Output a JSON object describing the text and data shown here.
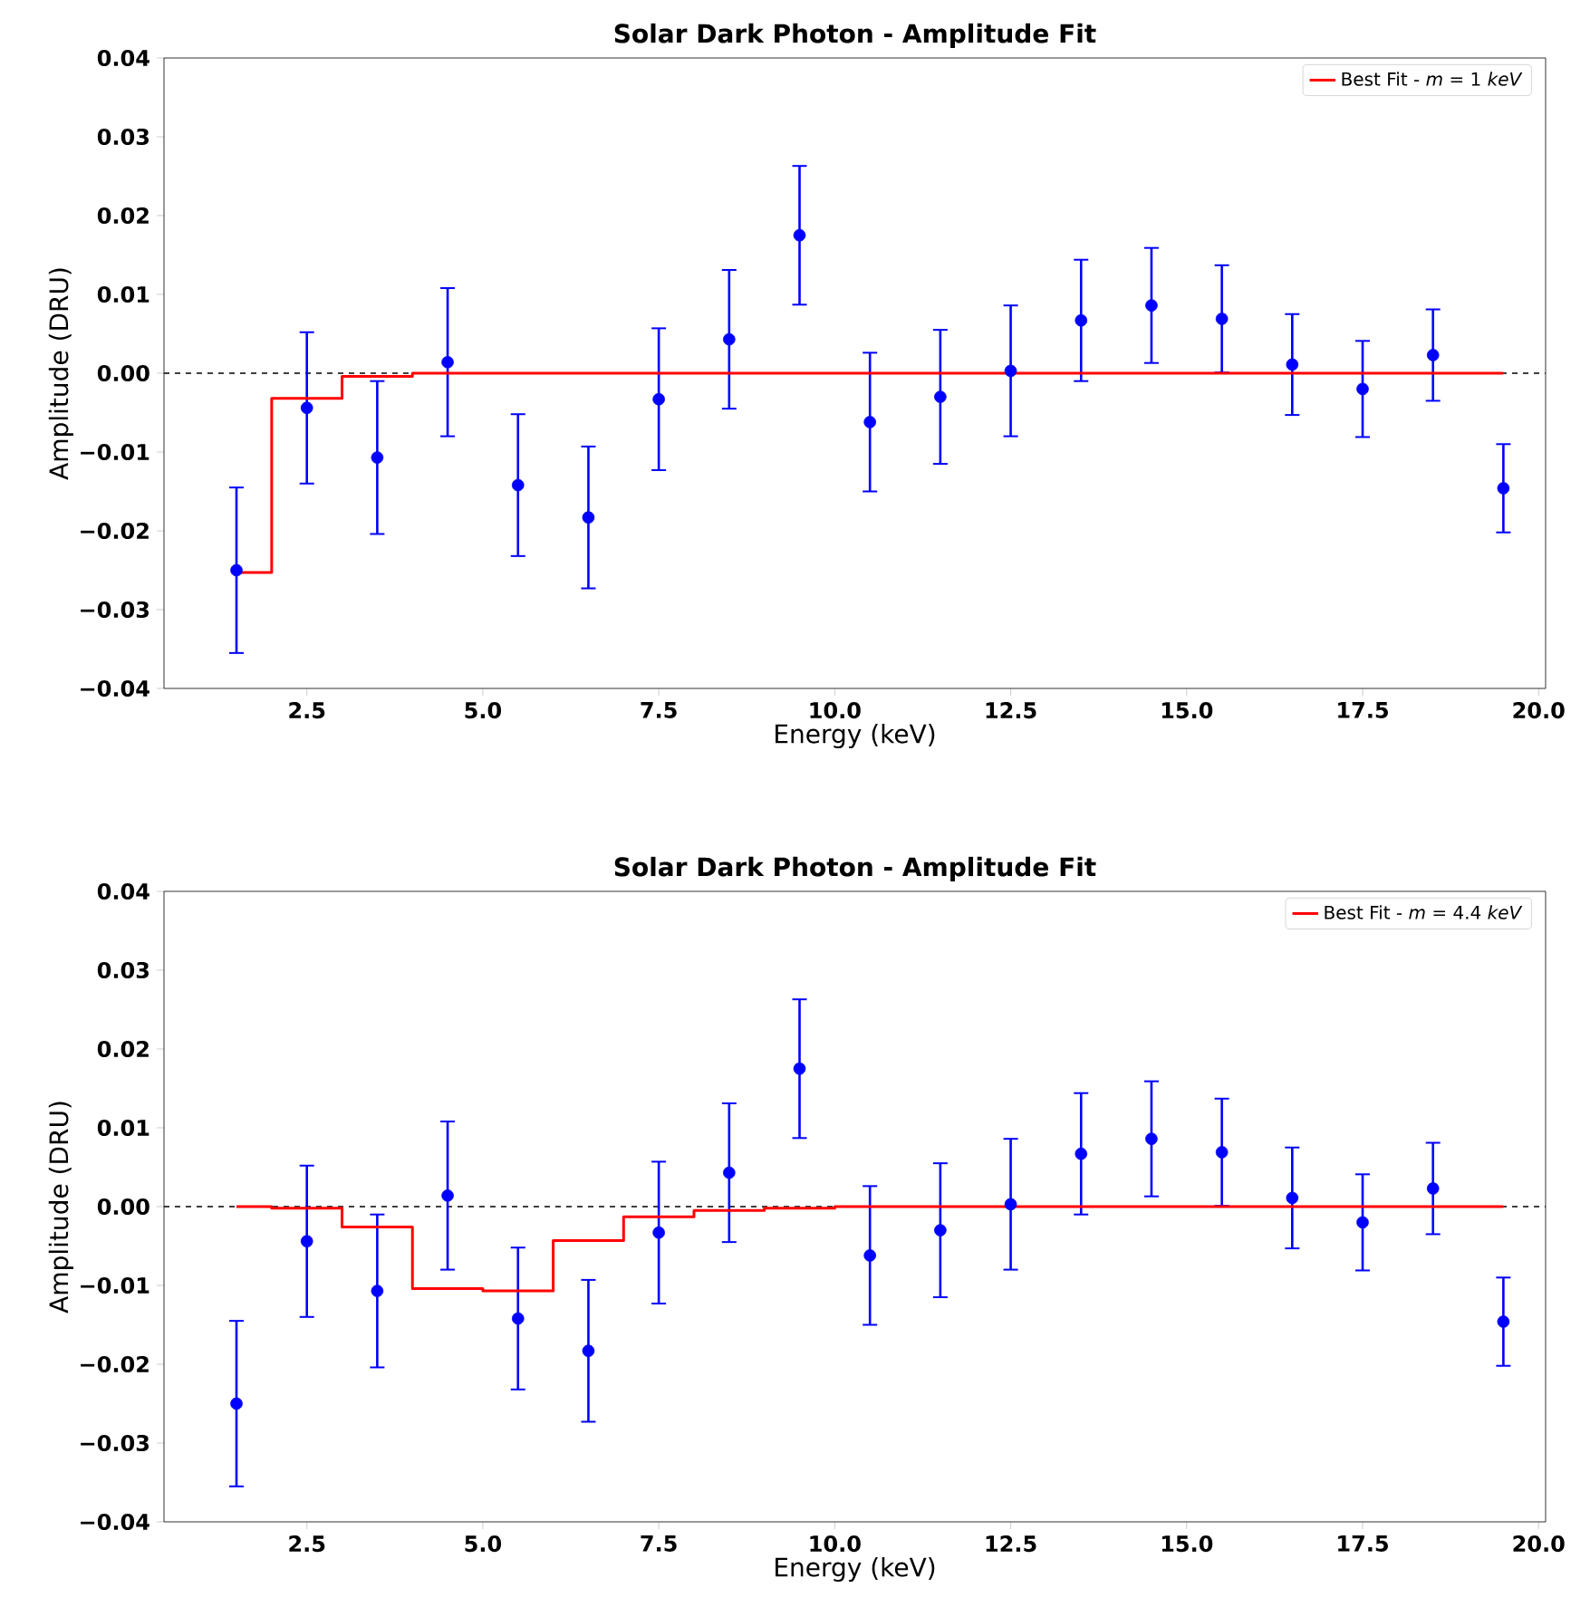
{
  "chart_data": [
    {
      "type": "scatter",
      "title": "Solar Dark Photon - Amplitude Fit",
      "xlabel": "Energy (keV)",
      "ylabel": "Amplitude (DRU)",
      "xlim": [
        0.47,
        20.1
      ],
      "ylim": [
        -0.04,
        0.04
      ],
      "xticks": [
        {
          "value": 2.5,
          "label": "2.5"
        },
        {
          "value": 5,
          "label": "5.0"
        },
        {
          "value": 7.5,
          "label": "7.5"
        },
        {
          "value": 10,
          "label": "10.0"
        },
        {
          "value": 12.5,
          "label": "12.5"
        },
        {
          "value": 15,
          "label": "15.0"
        },
        {
          "value": 17.5,
          "label": "17.5"
        },
        {
          "value": 20,
          "label": "20.0"
        }
      ],
      "yticks": [
        {
          "value": -0.04,
          "label": "−0.04"
        },
        {
          "value": -0.03,
          "label": "−0.03"
        },
        {
          "value": -0.02,
          "label": "−0.02"
        },
        {
          "value": -0.01,
          "label": "−0.01"
        },
        {
          "value": 0,
          "label": "0.00"
        },
        {
          "value": 0.01,
          "label": "0.01"
        },
        {
          "value": 0.02,
          "label": "0.02"
        },
        {
          "value": 0.03,
          "label": "0.03"
        },
        {
          "value": 0.04,
          "label": "0.04"
        }
      ],
      "legend": "top right",
      "grid": false,
      "ref_lines": [
        {
          "axis": "y",
          "value": 0,
          "color": "#000000",
          "line_style": "dashed"
        }
      ],
      "series": [
        {
          "color": "#0000ff",
          "marker": "circle",
          "x": [
            1.5,
            2.5,
            3.5,
            4.5,
            5.5,
            6.5,
            7.5,
            8.5,
            9.5,
            10.5,
            11.5,
            12.5,
            13.5,
            14.5,
            15.5,
            16.5,
            17.5,
            18.5,
            19.5
          ],
          "values": [
            -0.025,
            -0.0044,
            -0.0107,
            0.0014,
            -0.0142,
            -0.0183,
            -0.0033,
            0.0043,
            0.0175,
            -0.0062,
            -0.003,
            0.0003,
            0.0067,
            0.0086,
            0.0069,
            0.0011,
            -0.002,
            0.0023,
            -0.0146
          ],
          "errors": [
            0.0105,
            0.0096,
            0.0097,
            0.0094,
            0.009,
            0.009,
            0.009,
            0.0088,
            0.0088,
            0.0088,
            0.0085,
            0.0083,
            0.0077,
            0.0073,
            0.0068,
            0.0064,
            0.0061,
            0.0058,
            0.0056
          ]
        },
        {
          "type": "step",
          "name": "Best Fit - *m* = 1 *keV*",
          "color": "#ff0000",
          "x": [
            1.5,
            2.5,
            3.5,
            4.5,
            5.5,
            6.5,
            7.5,
            8.5,
            9.5,
            10.5,
            11.5,
            12.5,
            13.5,
            14.5,
            15.5,
            16.5,
            17.5,
            18.5,
            19.5
          ],
          "values": [
            -0.0253,
            -0.0032,
            -0.0004,
            0,
            0,
            0,
            0,
            0,
            0,
            0,
            0,
            0,
            0,
            0,
            0,
            0,
            0,
            0,
            0
          ]
        }
      ]
    },
    {
      "type": "scatter",
      "title": "Solar Dark Photon - Amplitude Fit",
      "xlabel": "Energy (keV)",
      "ylabel": "Amplitude (DRU)",
      "xlim": [
        0.47,
        20.1
      ],
      "ylim": [
        -0.04,
        0.04
      ],
      "xticks": [
        {
          "value": 2.5,
          "label": "2.5"
        },
        {
          "value": 5,
          "label": "5.0"
        },
        {
          "value": 7.5,
          "label": "7.5"
        },
        {
          "value": 10,
          "label": "10.0"
        },
        {
          "value": 12.5,
          "label": "12.5"
        },
        {
          "value": 15,
          "label": "15.0"
        },
        {
          "value": 17.5,
          "label": "17.5"
        },
        {
          "value": 20,
          "label": "20.0"
        }
      ],
      "yticks": [
        {
          "value": -0.04,
          "label": "−0.04"
        },
        {
          "value": -0.03,
          "label": "−0.03"
        },
        {
          "value": -0.02,
          "label": "−0.02"
        },
        {
          "value": -0.01,
          "label": "−0.01"
        },
        {
          "value": 0,
          "label": "0.00"
        },
        {
          "value": 0.01,
          "label": "0.01"
        },
        {
          "value": 0.02,
          "label": "0.02"
        },
        {
          "value": 0.03,
          "label": "0.03"
        },
        {
          "value": 0.04,
          "label": "0.04"
        }
      ],
      "legend": "top right",
      "grid": false,
      "ref_lines": [
        {
          "axis": "y",
          "value": 0,
          "color": "#000000",
          "line_style": "dashed"
        }
      ],
      "series": [
        {
          "color": "#0000ff",
          "marker": "circle",
          "x": [
            1.5,
            2.5,
            3.5,
            4.5,
            5.5,
            6.5,
            7.5,
            8.5,
            9.5,
            10.5,
            11.5,
            12.5,
            13.5,
            14.5,
            15.5,
            16.5,
            17.5,
            18.5,
            19.5
          ],
          "values": [
            -0.025,
            -0.0044,
            -0.0107,
            0.0014,
            -0.0142,
            -0.0183,
            -0.0033,
            0.0043,
            0.0175,
            -0.0062,
            -0.003,
            0.0003,
            0.0067,
            0.0086,
            0.0069,
            0.0011,
            -0.002,
            0.0023,
            -0.0146
          ],
          "errors": [
            0.0105,
            0.0096,
            0.0097,
            0.0094,
            0.009,
            0.009,
            0.009,
            0.0088,
            0.0088,
            0.0088,
            0.0085,
            0.0083,
            0.0077,
            0.0073,
            0.0068,
            0.0064,
            0.0061,
            0.0058,
            0.0056
          ]
        },
        {
          "type": "step",
          "name": "Best Fit - *m* = 4.4 *keV*",
          "color": "#ff0000",
          "x": [
            1.5,
            2.5,
            3.5,
            4.5,
            5.5,
            6.5,
            7.5,
            8.5,
            9.5,
            10.5,
            11.5,
            12.5,
            13.5,
            14.5,
            15.5,
            16.5,
            17.5,
            18.5,
            19.5
          ],
          "values": [
            0,
            -0.0002,
            -0.0026,
            -0.0104,
            -0.0107,
            -0.0043,
            -0.0013,
            -0.0005,
            -0.0002,
            0,
            0,
            0,
            0,
            0,
            0,
            0,
            0,
            0,
            0
          ]
        }
      ]
    }
  ]
}
